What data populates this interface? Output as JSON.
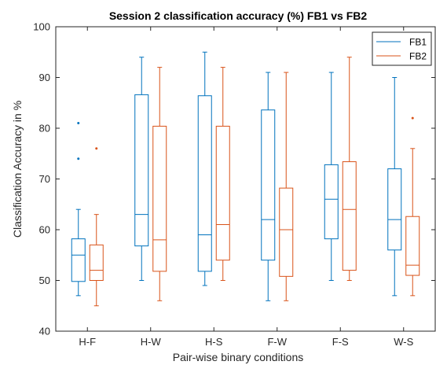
{
  "chart_data": {
    "type": "box",
    "title": "Session 2 classification accuracy (%) FB1 vs FB2",
    "xlabel": "Pair-wise binary conditions",
    "ylabel": "Classification Accuracy in %",
    "ylim": [
      40,
      100
    ],
    "yticks": [
      40,
      50,
      60,
      70,
      80,
      90,
      100
    ],
    "categories": [
      "H-F",
      "H-W",
      "H-S",
      "F-W",
      "F-S",
      "W-S"
    ],
    "grid": false,
    "legend_position": "top-right",
    "series": [
      {
        "name": "FB1",
        "color": "#0072BD",
        "boxes": [
          {
            "whisker_low": 47,
            "q1": 49.8,
            "median": 55,
            "q3": 58.2,
            "whisker_high": 64,
            "outliers": [
              74,
              81
            ]
          },
          {
            "whisker_low": 50,
            "q1": 56.8,
            "median": 63,
            "q3": 86.6,
            "whisker_high": 94,
            "outliers": []
          },
          {
            "whisker_low": 49,
            "q1": 51.8,
            "median": 59,
            "q3": 86.4,
            "whisker_high": 95,
            "outliers": []
          },
          {
            "whisker_low": 46,
            "q1": 54,
            "median": 62,
            "q3": 83.6,
            "whisker_high": 91,
            "outliers": []
          },
          {
            "whisker_low": 50,
            "q1": 58.2,
            "median": 66,
            "q3": 72.8,
            "whisker_high": 91,
            "outliers": []
          },
          {
            "whisker_low": 47,
            "q1": 56,
            "median": 62,
            "q3": 72,
            "whisker_high": 90,
            "outliers": []
          }
        ]
      },
      {
        "name": "FB2",
        "color": "#D95319",
        "boxes": [
          {
            "whisker_low": 45,
            "q1": 50,
            "median": 52,
            "q3": 57,
            "whisker_high": 63,
            "outliers": [
              76
            ]
          },
          {
            "whisker_low": 46,
            "q1": 51.8,
            "median": 58,
            "q3": 80.4,
            "whisker_high": 92,
            "outliers": []
          },
          {
            "whisker_low": 50,
            "q1": 54,
            "median": 61,
            "q3": 80.4,
            "whisker_high": 92,
            "outliers": []
          },
          {
            "whisker_low": 46,
            "q1": 50.8,
            "median": 60,
            "q3": 68.2,
            "whisker_high": 91,
            "outliers": []
          },
          {
            "whisker_low": 50,
            "q1": 52,
            "median": 64,
            "q3": 73.4,
            "whisker_high": 94,
            "outliers": []
          },
          {
            "whisker_low": 47,
            "q1": 51,
            "median": 53,
            "q3": 62.6,
            "whisker_high": 76,
            "outliers": [
              82
            ]
          }
        ]
      }
    ]
  }
}
